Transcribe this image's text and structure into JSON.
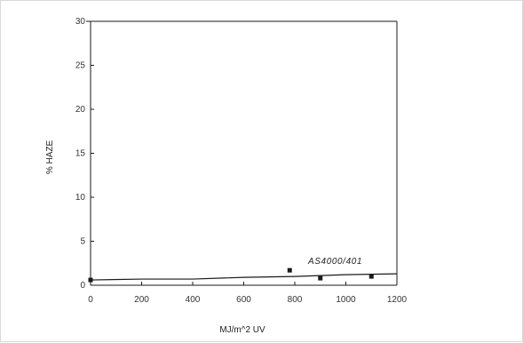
{
  "chart_data": {
    "type": "line",
    "title": "",
    "xlabel": "MJ/m^2   UV",
    "ylabel": "% HAZE",
    "xlim": [
      0,
      1200
    ],
    "ylim": [
      0,
      30
    ],
    "x_ticks": [
      "0",
      "200",
      "400",
      "600",
      "800",
      "1000",
      "1200"
    ],
    "y_ticks": [
      "0",
      "5",
      "10",
      "15",
      "20",
      "25",
      "30"
    ],
    "grid": false,
    "legend": "none",
    "annotation": "AS4000/401",
    "series": [
      {
        "values": [
          {
            "x": 0,
            "y": 0.6
          },
          {
            "x": 200,
            "y": 0.7
          },
          {
            "x": 400,
            "y": 0.7
          },
          {
            "x": 600,
            "y": 0.9
          },
          {
            "x": 800,
            "y": 1.0
          },
          {
            "x": 1000,
            "y": 1.2
          },
          {
            "x": 1200,
            "y": 1.3
          }
        ],
        "markers": [
          {
            "x": 0,
            "y": 0.6
          },
          {
            "x": 900,
            "y": 0.8
          },
          {
            "x": 1100,
            "y": 1.0
          },
          {
            "x": 780,
            "y": 1.7
          }
        ]
      }
    ],
    "colors": {
      "line": "#1a1a1a",
      "marker": "#1a1a1a"
    }
  }
}
